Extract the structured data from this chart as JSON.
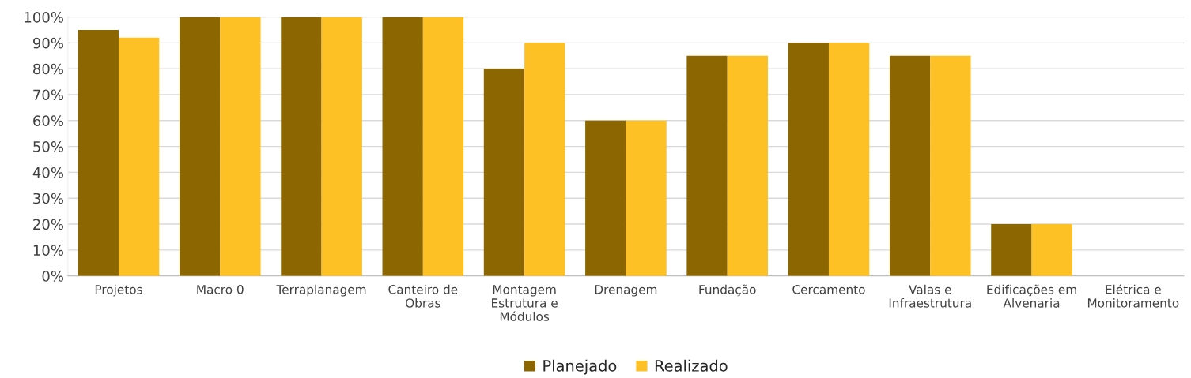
{
  "chart_data": {
    "type": "bar",
    "categories": [
      "Projetos",
      "Macro 0",
      "Terraplanagem",
      "Canteiro de\nObras",
      "Montagem\nEstrutura e\nMódulos",
      "Drenagem",
      "Fundação",
      "Cercamento",
      "Valas e\nInfraestrutura",
      "Edificações em\nAlvenaria",
      "Elétrica e\nMonitoramento"
    ],
    "series": [
      {
        "name": "Planejado",
        "color": "#8c6600",
        "values": [
          95,
          100,
          100,
          100,
          80,
          60,
          85,
          90,
          85,
          20,
          0
        ]
      },
      {
        "name": "Realizado",
        "color": "#fdc125",
        "values": [
          92,
          100,
          100,
          100,
          90,
          60,
          85,
          90,
          85,
          20,
          0
        ]
      }
    ],
    "ylim": [
      0,
      100
    ],
    "yticks": [
      {
        "value": 0,
        "label": "0%"
      },
      {
        "value": 10,
        "label": "10%"
      },
      {
        "value": 20,
        "label": "20%"
      },
      {
        "value": 30,
        "label": "30%"
      },
      {
        "value": 40,
        "label": "40%"
      },
      {
        "value": 50,
        "label": "50%"
      },
      {
        "value": 60,
        "label": "60%"
      },
      {
        "value": 70,
        "label": "70%"
      },
      {
        "value": 80,
        "label": "80%"
      },
      {
        "value": 90,
        "label": "90%"
      },
      {
        "value": 100,
        "label": "100%"
      }
    ],
    "grid": "y",
    "legend": "bottom"
  }
}
